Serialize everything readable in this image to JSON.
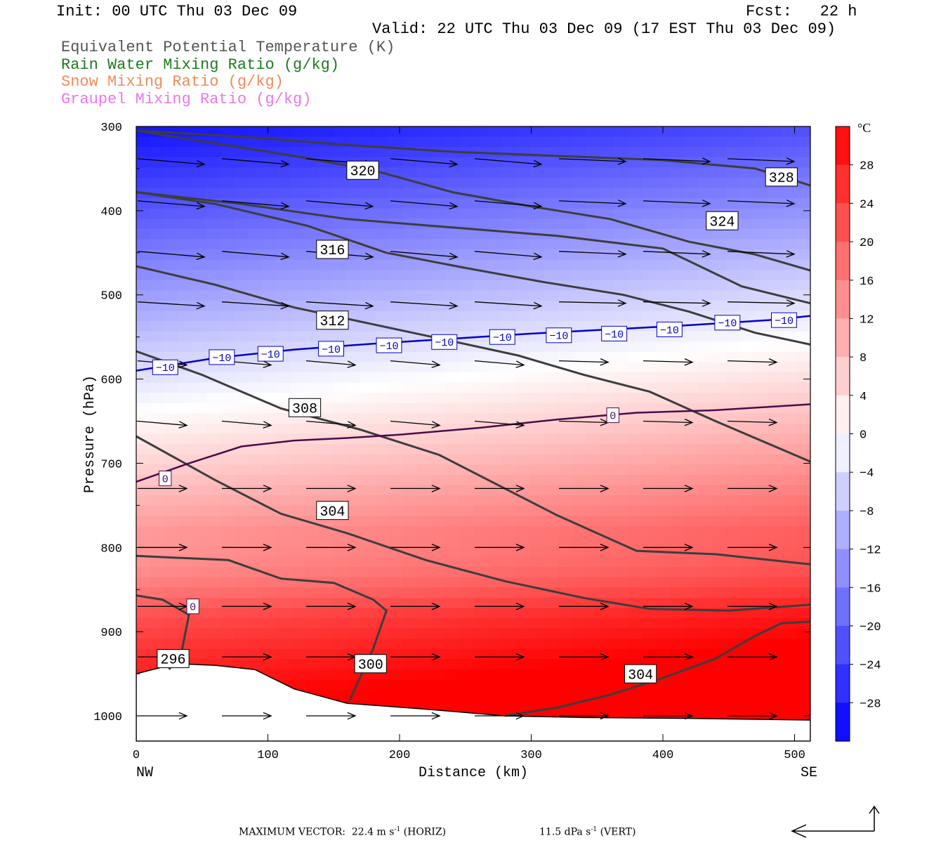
{
  "header": {
    "init": "Init: 00 UTC Thu 03 Dec 09",
    "fcst": "Fcst:   22 h",
    "valid": "Valid: 22 UTC Thu 03 Dec 09 (17 EST Thu 03 Dec 09)",
    "variables": [
      {
        "label": "Equivalent Potential Temperature (K)",
        "color": "#555555"
      },
      {
        "label": "Rain Water Mixing Ratio (g/kg)",
        "color": "#1f7a1f"
      },
      {
        "label": "Snow Mixing Ratio (g/kg)",
        "color": "#f08c58"
      },
      {
        "label": "Graupel Mixing Ratio (g/kg)",
        "color": "#e879e8"
      }
    ]
  },
  "footer": {
    "max_vector_prefix": "MAXIMUM VECTOR:  22.4 m s",
    "horiz_suffix": " (HORIZ)",
    "vert_prefix": "11.5 dPa s",
    "vert_suffix": " (VERT)",
    "exponent": "-1"
  },
  "chart_data": {
    "type": "heatmap",
    "xlabel": "Distance (km)",
    "ylabel": "Pressure (hPa)",
    "x_ticks": [
      0,
      100,
      200,
      300,
      400,
      500
    ],
    "x_end_labels": {
      "left": "NW",
      "right": "SE"
    },
    "y_ticks": [
      300,
      400,
      500,
      600,
      700,
      800,
      900,
      1000
    ],
    "xlim": [
      0,
      512
    ],
    "ylim": [
      300,
      1030
    ],
    "colorbar": {
      "unit": "°C",
      "tick_labels": [
        28,
        24,
        20,
        16,
        12,
        8,
        4,
        0,
        -4,
        -8,
        -12,
        -16,
        -20,
        -24,
        -28
      ],
      "range": [
        -32,
        32
      ]
    },
    "theta_e_contours": [
      {
        "value": 328,
        "points": [
          [
            0,
            305
          ],
          [
            80,
            312
          ],
          [
            160,
            322
          ],
          [
            240,
            330
          ],
          [
            320,
            335
          ],
          [
            400,
            340
          ],
          [
            470,
            350
          ],
          [
            512,
            370
          ]
        ],
        "label_at": [
          490,
          360
        ]
      },
      {
        "value": 324,
        "points": [
          [
            0,
            378
          ],
          [
            80,
            392
          ],
          [
            160,
            410
          ],
          [
            240,
            420
          ],
          [
            320,
            430
          ],
          [
            400,
            445
          ],
          [
            460,
            490
          ],
          [
            512,
            510
          ]
        ],
        "label_at": [
          445,
          412
        ]
      },
      {
        "value": 320,
        "points": [
          [
            0,
            305
          ],
          [
            60,
            320
          ],
          [
            120,
            335
          ],
          [
            180,
            352
          ],
          [
            240,
            378
          ],
          [
            300,
            395
          ],
          [
            360,
            410
          ],
          [
            420,
            437
          ],
          [
            470,
            452
          ],
          [
            512,
            471
          ]
        ],
        "label_at": [
          172,
          352
        ]
      },
      {
        "value": 316,
        "points": [
          [
            0,
            378
          ],
          [
            60,
            392
          ],
          [
            130,
            418
          ],
          [
            190,
            450
          ],
          [
            250,
            468
          ],
          [
            310,
            485
          ],
          [
            370,
            500
          ],
          [
            420,
            520
          ],
          [
            470,
            545
          ],
          [
            512,
            559
          ]
        ],
        "label_at": [
          149,
          446
        ]
      },
      {
        "value": 312,
        "points": [
          [
            0,
            466
          ],
          [
            60,
            488
          ],
          [
            120,
            515
          ],
          [
            180,
            535
          ],
          [
            240,
            555
          ],
          [
            290,
            572
          ],
          [
            340,
            595
          ],
          [
            390,
            615
          ],
          [
            440,
            650
          ],
          [
            512,
            698
          ]
        ],
        "label_at": [
          149,
          530
        ]
      },
      {
        "value": 308,
        "points": [
          [
            0,
            567
          ],
          [
            50,
            595
          ],
          [
            110,
            635
          ],
          [
            170,
            660
          ],
          [
            230,
            690
          ],
          [
            280,
            730
          ],
          [
            320,
            762
          ],
          [
            380,
            804
          ],
          [
            440,
            808
          ],
          [
            512,
            820
          ]
        ],
        "label_at": [
          128,
          634
        ]
      },
      {
        "value": 304,
        "points": [
          [
            0,
            668
          ],
          [
            60,
            720
          ],
          [
            110,
            760
          ],
          [
            160,
            783
          ],
          [
            220,
            815
          ],
          [
            280,
            840
          ],
          [
            340,
            860
          ],
          [
            390,
            873
          ],
          [
            450,
            875
          ],
          [
            512,
            868
          ]
        ],
        "label_at": [
          149,
          756
        ]
      },
      {
        "value": 300,
        "points": [
          [
            0,
            810
          ],
          [
            70,
            815
          ],
          [
            110,
            837
          ],
          [
            150,
            842
          ],
          [
            180,
            862
          ],
          [
            190,
            875
          ],
          [
            180,
            920
          ],
          [
            162,
            982
          ]
        ],
        "label_at": [
          178,
          938
        ]
      },
      {
        "value": 304,
        "points": [
          [
            280,
            1000
          ],
          [
            320,
            990
          ],
          [
            360,
            975
          ],
          [
            400,
            955
          ],
          [
            440,
            932
          ],
          [
            470,
            905
          ],
          [
            490,
            890
          ],
          [
            512,
            888
          ]
        ],
        "label_at": [
          383,
          950
        ]
      },
      {
        "value": 296,
        "points": [
          [
            0,
            857
          ],
          [
            20,
            862
          ],
          [
            40,
            880
          ],
          [
            35,
            920
          ],
          [
            25,
            945
          ]
        ],
        "label_at": [
          28,
          932
        ]
      }
    ],
    "temperature_isotherms": [
      {
        "value": -10,
        "color": "#0000cc",
        "points": [
          [
            0,
            590
          ],
          [
            60,
            575
          ],
          [
            120,
            565
          ],
          [
            180,
            558
          ],
          [
            240,
            552
          ],
          [
            300,
            546
          ],
          [
            360,
            541
          ],
          [
            420,
            536
          ],
          [
            480,
            530
          ],
          [
            512,
            525
          ]
        ],
        "label_positions": [
          [
            22,
            586
          ],
          [
            65,
            574
          ],
          [
            102,
            570
          ],
          [
            148,
            564
          ],
          [
            192,
            560
          ],
          [
            234,
            556
          ],
          [
            278,
            550
          ],
          [
            321,
            548
          ],
          [
            363,
            546
          ],
          [
            405,
            541
          ],
          [
            449,
            533
          ],
          [
            492,
            530
          ]
        ]
      },
      {
        "value": 0,
        "color": "#4b0a4b",
        "points": [
          [
            0,
            722
          ],
          [
            40,
            700
          ],
          [
            80,
            680
          ],
          [
            120,
            673
          ],
          [
            160,
            670
          ],
          [
            200,
            666
          ],
          [
            260,
            658
          ],
          [
            320,
            648
          ],
          [
            380,
            640
          ],
          [
            440,
            637
          ],
          [
            512,
            630
          ]
        ],
        "label_positions": [
          [
            22,
            718
          ],
          [
            362,
            643
          ],
          [
            43,
            870
          ]
        ]
      }
    ],
    "wind_rows_hpa": [
      340,
      390,
      450,
      510,
      580,
      650,
      730,
      800,
      870,
      930,
      1000
    ]
  }
}
